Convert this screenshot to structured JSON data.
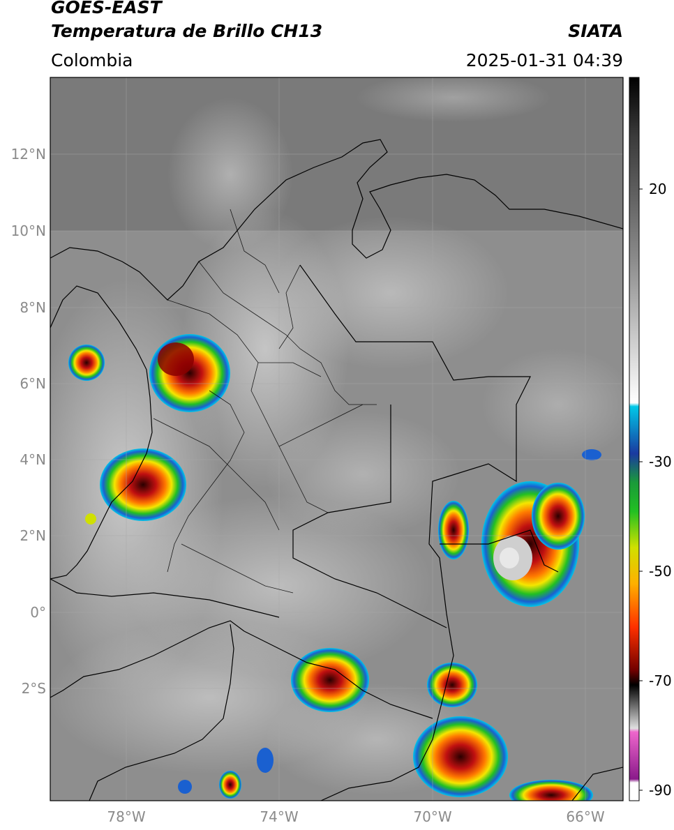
{
  "header": {
    "satellite": "GOES-EAST",
    "product": "Temperatura de Brillo CH13",
    "region": "Colombia",
    "agency": "SIATA",
    "datetime": "2025-01-31 04:39"
  },
  "map": {
    "lat_ticks": [
      "12°N",
      "10°N",
      "8°N",
      "6°N",
      "4°N",
      "2°N",
      "0°",
      "2°S"
    ],
    "lon_ticks": [
      "78°W",
      "74°W",
      "70°W",
      "66°W"
    ]
  },
  "colorbar": {
    "ticks": [
      "20",
      "-30",
      "-50",
      "-70",
      "-90"
    ],
    "range": [
      -92,
      38
    ]
  }
}
